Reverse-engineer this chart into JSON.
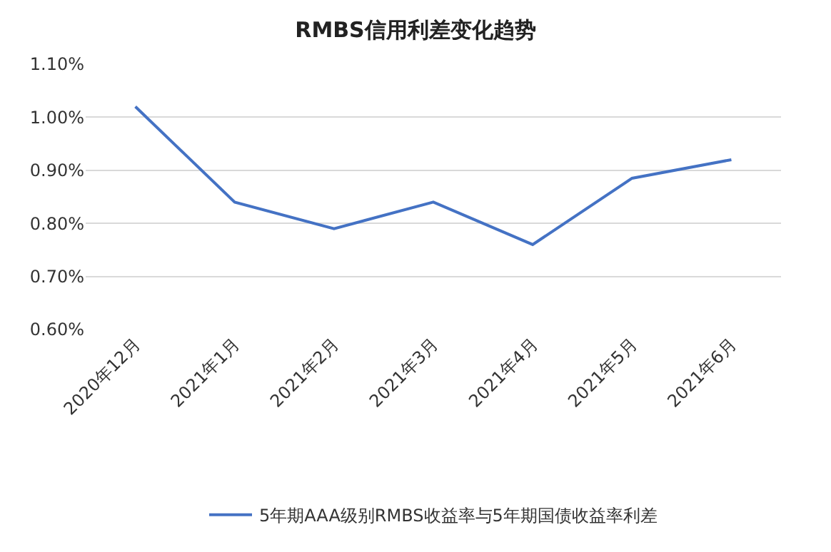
{
  "chart_data": {
    "type": "line",
    "title": "RMBS信用利差变化趋势",
    "categories": [
      "2020年12月",
      "2021年1月",
      "2021年2月",
      "2021年3月",
      "2021年4月",
      "2021年5月",
      "2021年6月"
    ],
    "series": [
      {
        "name": "5年期AAA级别RMBS收益率与5年期国债收益率利差",
        "color": "#4472c4",
        "values": [
          1.02,
          0.84,
          0.79,
          0.84,
          0.76,
          0.885,
          0.92
        ]
      }
    ],
    "ylim": [
      0.6,
      1.1
    ],
    "yticks": [
      {
        "value": 0.6,
        "label": "0.60%"
      },
      {
        "value": 0.7,
        "label": "0.70%"
      },
      {
        "value": 0.8,
        "label": "0.80%"
      },
      {
        "value": 0.9,
        "label": "0.90%"
      },
      {
        "value": 1.0,
        "label": "1.00%"
      },
      {
        "value": 1.1,
        "label": "1.10%"
      }
    ],
    "grid": "y",
    "legend": "bottom",
    "marker": "none",
    "line_style": "solid"
  }
}
